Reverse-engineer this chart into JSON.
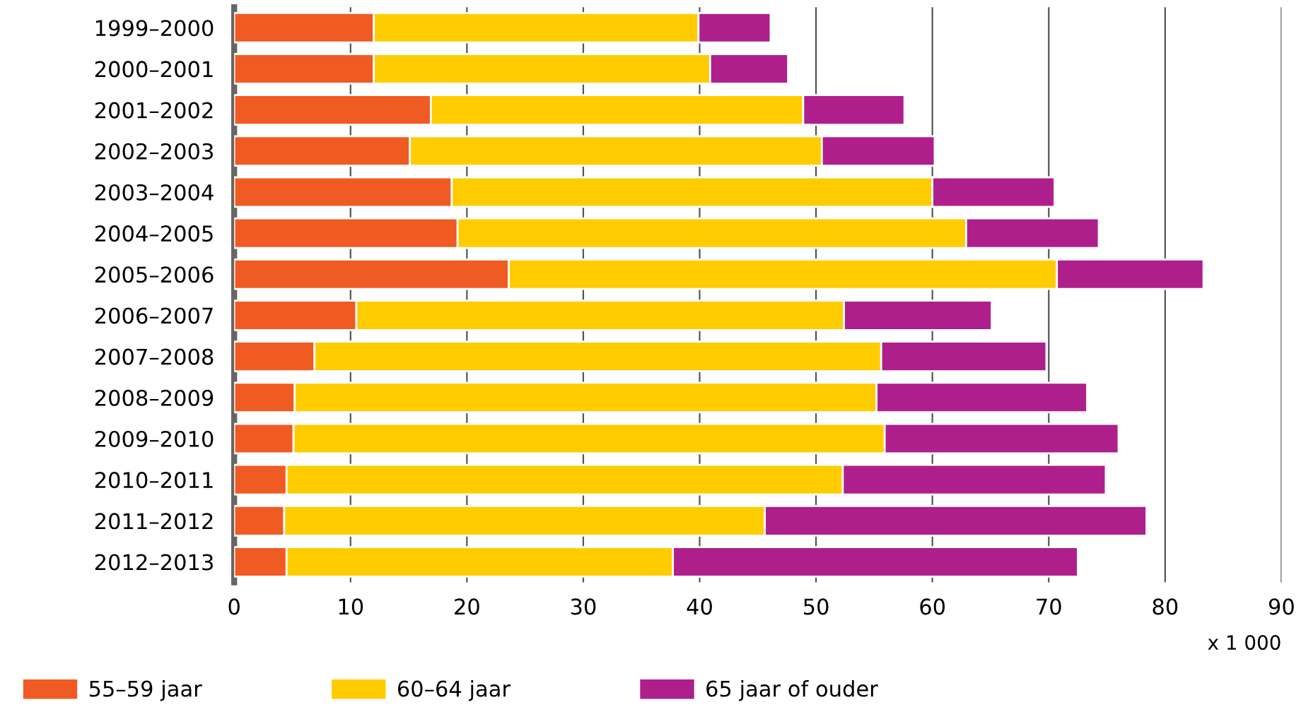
{
  "chart_data": {
    "type": "bar",
    "orientation": "horizontal",
    "stacked": true,
    "categories": [
      "1999–2000",
      "2000–2001",
      "2001–2002",
      "2002–2003",
      "2003–2004",
      "2004–2005",
      "2005–2006",
      "2006–2007",
      "2007–2008",
      "2008–2009",
      "2009–2010",
      "2010–2011",
      "2011–2012",
      "2012–2013"
    ],
    "series": [
      {
        "name": "55–59 jaar",
        "color": "#f05a23",
        "values": [
          12.0,
          12.0,
          16.9,
          15.1,
          18.7,
          19.2,
          23.6,
          10.5,
          6.9,
          5.2,
          5.1,
          4.5,
          4.3,
          4.5
        ]
      },
      {
        "name": "60–64 jaar",
        "color": "#ffcc00",
        "values": [
          27.9,
          28.9,
          32.0,
          35.4,
          41.3,
          43.7,
          47.1,
          41.9,
          48.7,
          50.0,
          50.8,
          47.8,
          41.3,
          33.2
        ]
      },
      {
        "name": "65 jaar of ouder",
        "color": "#ae1f8c",
        "values": [
          6.2,
          6.7,
          8.7,
          9.7,
          10.5,
          11.4,
          12.6,
          12.7,
          14.2,
          18.1,
          20.1,
          22.6,
          32.8,
          34.8
        ]
      }
    ],
    "xlabel": "x 1 000",
    "xlim": [
      0,
      90
    ],
    "xticks": [
      0,
      10,
      20,
      30,
      40,
      50,
      60,
      70,
      80,
      90
    ],
    "grid": "x",
    "legend": "bottom"
  }
}
